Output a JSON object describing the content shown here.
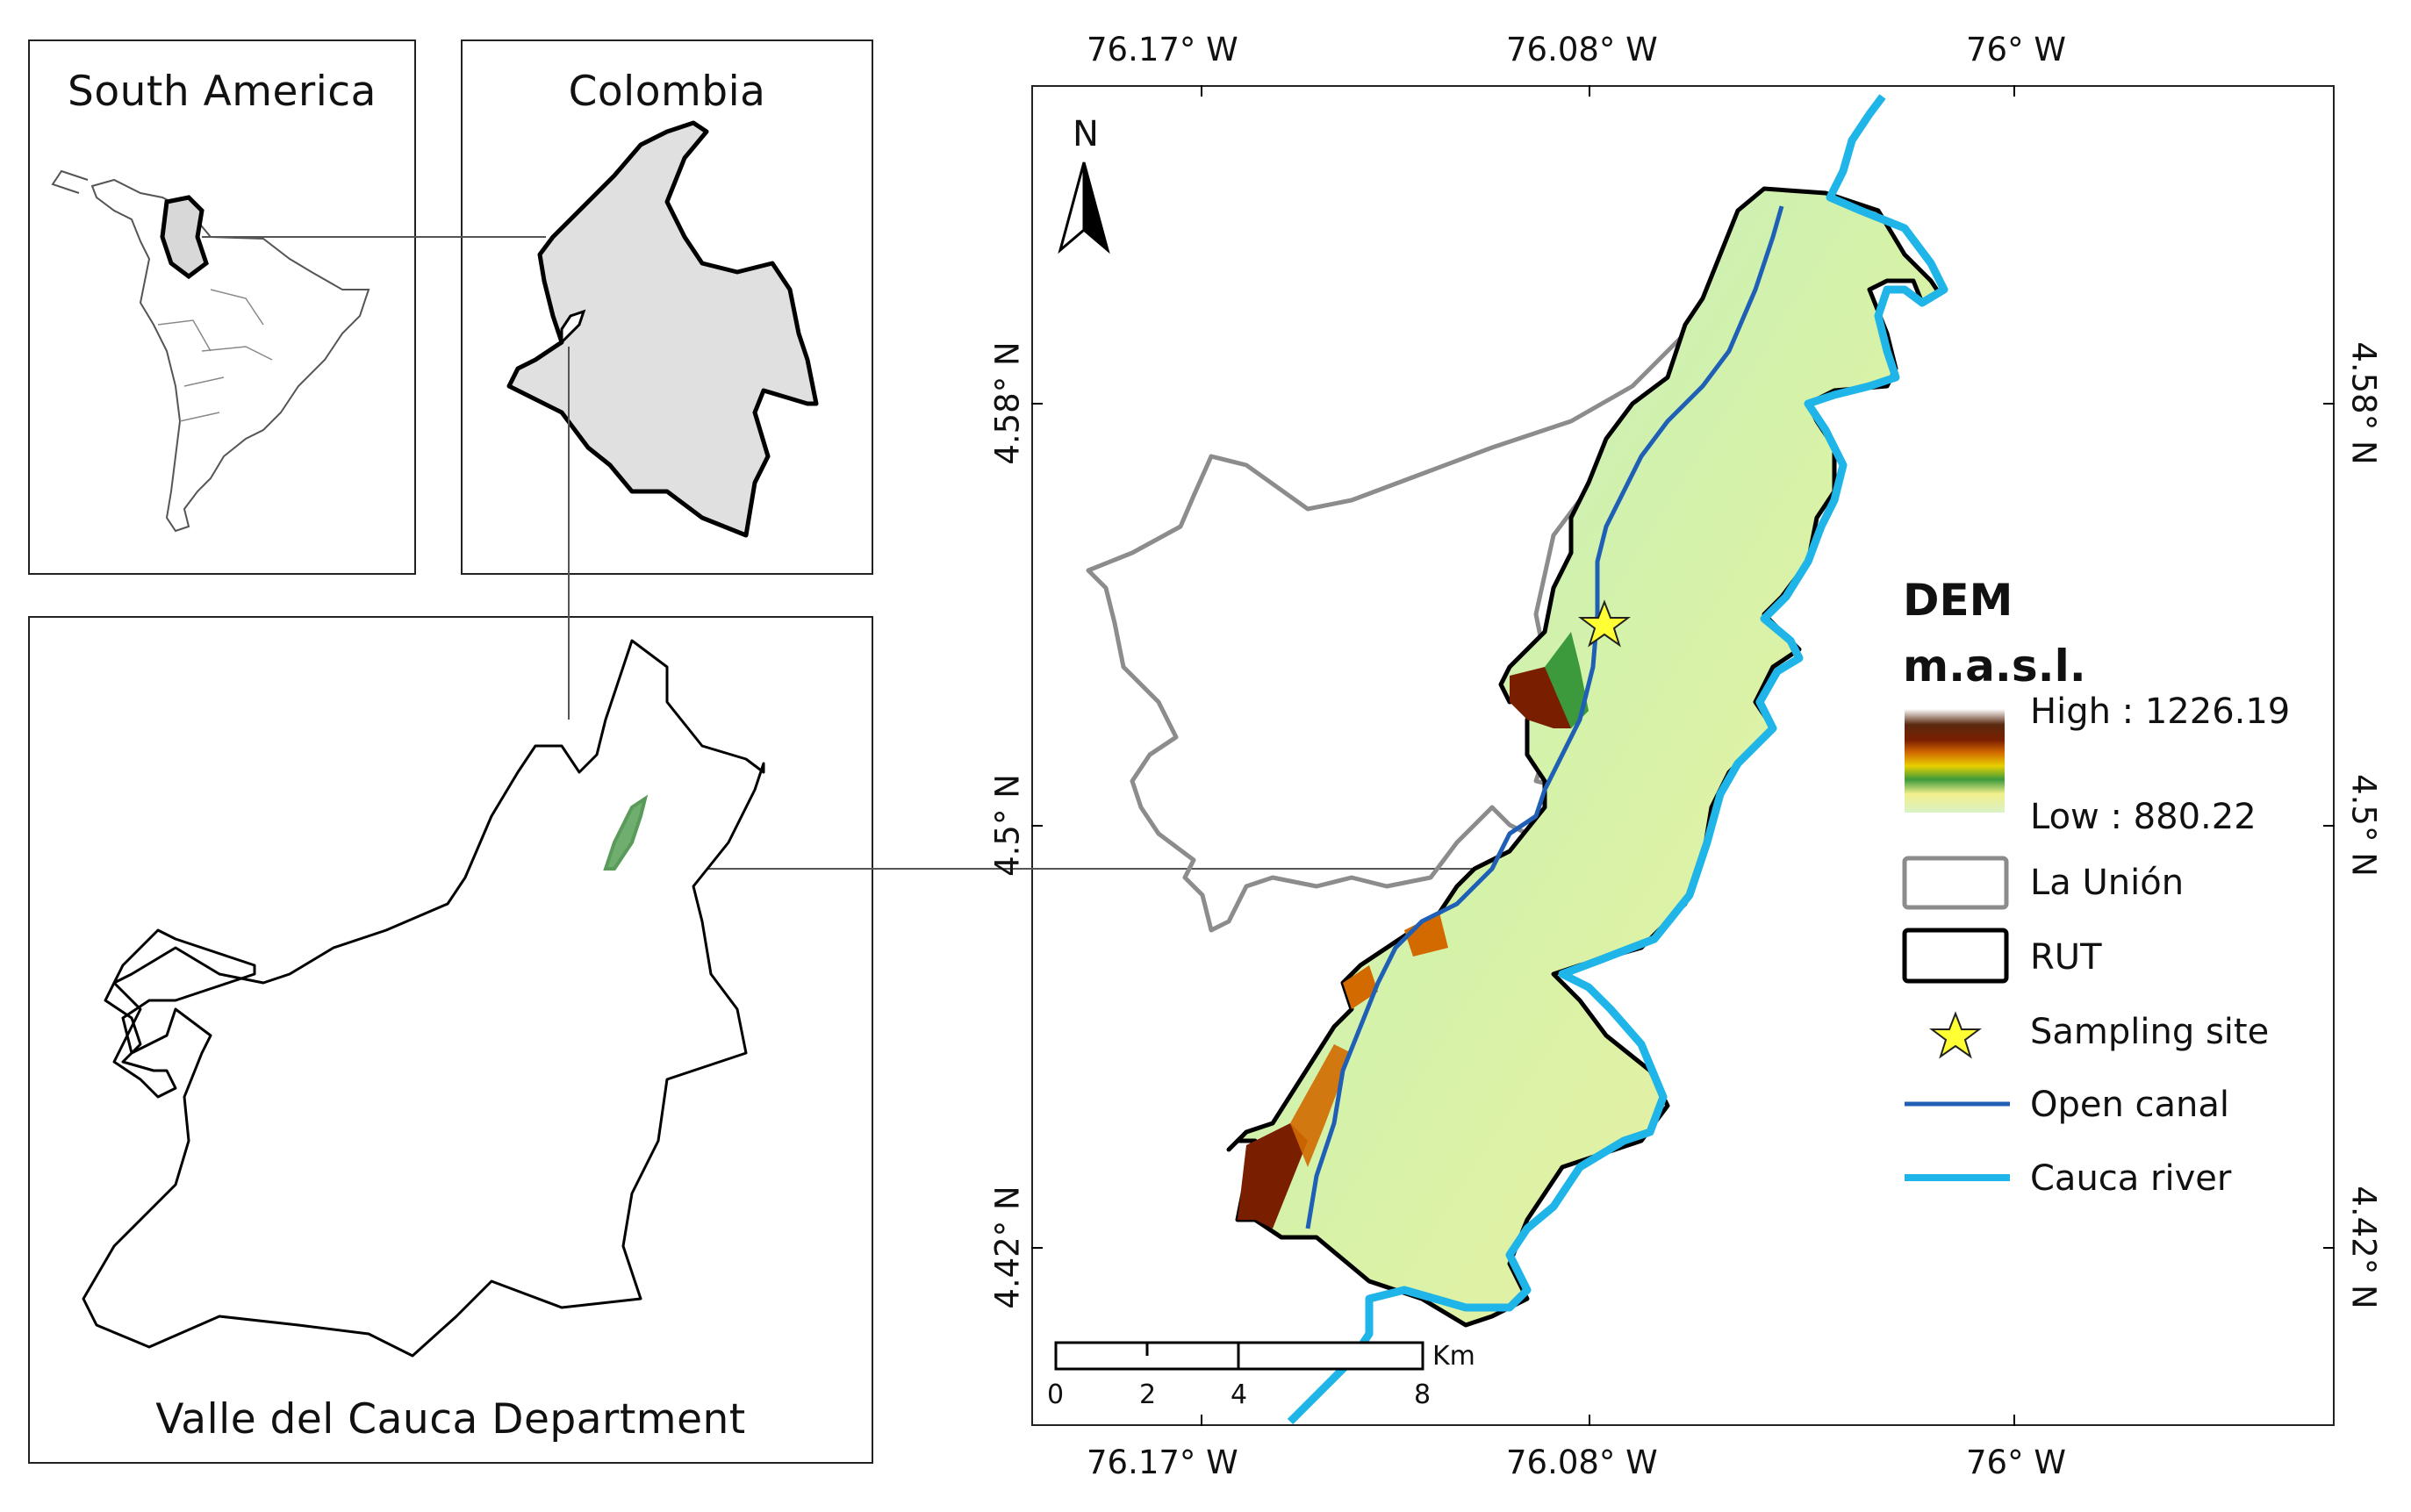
{
  "insets": {
    "south_america": {
      "title": "South America"
    },
    "colombia": {
      "title": "Colombia"
    },
    "valle": {
      "title": "Valle del Cauca Department"
    }
  },
  "map": {
    "top_labels": [
      "76.17° W",
      "76.08° W",
      "76° W"
    ],
    "bottom_labels": [
      "76.17° W",
      "76.08° W",
      "76° W"
    ],
    "left_labels": [
      "4.58° N",
      "4.5° N",
      "4.42° N"
    ],
    "right_labels": [
      "4.58° N",
      "4.5° N",
      "4.42° N"
    ],
    "north_label": "N"
  },
  "legend": {
    "title_dem": "DEM",
    "title_units": "m.a.s.l.",
    "high_label": "High : 1226.19",
    "low_label": "Low : 880.22",
    "items": {
      "la_union": "La Unión",
      "rut": "RUT",
      "sampling": "Sampling site",
      "canal": "Open canal",
      "river": "Cauca river"
    },
    "colors": {
      "la_union": "#8c8c8c",
      "rut": "#000000",
      "sampling": "#ffff33",
      "canal": "#1f5fb5",
      "river": "#1fb5e8",
      "dem_ramp": [
        "#d9f2c6",
        "#f2f08c",
        "#3c9a3c",
        "#e8d000",
        "#d26a00",
        "#7a1e00",
        "#5a2a10",
        "#ffffff"
      ]
    }
  },
  "scalebar": {
    "ticks": [
      "0",
      "2",
      "4",
      "8"
    ],
    "unit": "Km"
  }
}
